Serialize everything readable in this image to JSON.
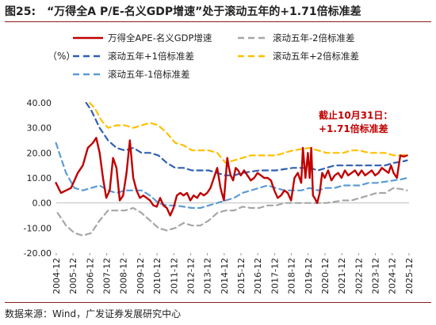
{
  "figure": {
    "number": "图25:",
    "title": "“万得全A P/E-名义GDP增速”处于滚动五年的+1.71倍标准差",
    "unit": "（%）",
    "source": "数据来源：Wind，广发证券发展研究中心",
    "annotation_line1": "截止10月31日：",
    "annotation_line2": "+1.71倍标准差"
  },
  "colors": {
    "main": "#c00000",
    "minus2": "#a6a6a6",
    "plus1": "#2f5fb3",
    "plus2": "#ffc000",
    "minus1": "#5b9bd5",
    "title_rule": "#8a1c1c"
  },
  "chart_data": {
    "type": "line",
    "y_ticks": [
      "40.00",
      "30.00",
      "20.00",
      "10.00",
      "0.00",
      "-10.00",
      "-20.00"
    ],
    "ylim": [
      -20,
      40
    ],
    "x_ticks": [
      "2004-12",
      "2005-12",
      "2006-12",
      "2007-12",
      "2008-12",
      "2009-12",
      "2010-12",
      "2011-12",
      "2012-12",
      "2013-12",
      "2014-12",
      "2015-12",
      "2016-12",
      "2017-12",
      "2018-12",
      "2019-12",
      "2020-12",
      "2021-12",
      "2022-12",
      "2023-12",
      "2024-12",
      "2025-12"
    ],
    "xlim": [
      2004.92,
      2025.92
    ],
    "legend_position": "top",
    "series": [
      {
        "name": "万得全APE-名义GDP增速",
        "style": "solid",
        "color_key": "main",
        "x": [
          2004.9,
          2005.2,
          2005.5,
          2005.8,
          2006.2,
          2006.5,
          2006.8,
          2007.1,
          2007.3,
          2007.5,
          2007.7,
          2007.9,
          2008.1,
          2008.3,
          2008.5,
          2008.7,
          2008.9,
          2009.1,
          2009.3,
          2009.5,
          2009.7,
          2009.9,
          2010.1,
          2010.3,
          2010.5,
          2010.7,
          2010.9,
          2011.1,
          2011.3,
          2011.5,
          2011.7,
          2011.9,
          2012.1,
          2012.3,
          2012.5,
          2012.7,
          2012.9,
          2013.1,
          2013.3,
          2013.5,
          2013.7,
          2013.9,
          2014.1,
          2014.3,
          2014.5,
          2014.7,
          2014.9,
          2015.1,
          2015.2,
          2015.3,
          2015.45,
          2015.6,
          2015.75,
          2015.9,
          2016.1,
          2016.3,
          2016.5,
          2016.7,
          2016.9,
          2017.1,
          2017.3,
          2017.5,
          2017.7,
          2017.9,
          2018.1,
          2018.3,
          2018.5,
          2018.7,
          2018.9,
          2019.1,
          2019.3,
          2019.5,
          2019.6,
          2019.75,
          2019.9,
          2020.0,
          2020.1,
          2020.2,
          2020.3,
          2020.45,
          2020.6,
          2020.75,
          2020.9,
          2021.1,
          2021.3,
          2021.5,
          2021.7,
          2021.9,
          2022.1,
          2022.3,
          2022.5,
          2022.7,
          2022.9,
          2023.1,
          2023.3,
          2023.5,
          2023.7,
          2023.9,
          2024.1,
          2024.3,
          2024.5,
          2024.7,
          2024.85,
          2025.0,
          2025.2,
          2025.4,
          2025.6,
          2025.8
        ],
        "y": [
          8,
          4,
          5,
          6,
          12,
          15,
          22,
          24,
          26,
          20,
          10,
          2,
          5,
          18,
          14,
          1,
          3,
          12,
          25,
          10,
          5,
          2,
          3,
          2,
          1,
          -1,
          -1.5,
          2,
          -1,
          -2,
          -5,
          -2,
          3,
          4,
          3,
          4,
          1,
          3,
          2,
          4,
          3,
          4,
          6,
          10,
          14,
          6,
          1,
          18,
          14,
          11,
          9,
          14,
          13,
          11,
          13,
          11,
          9,
          10,
          12,
          11,
          10,
          10,
          9,
          5,
          2,
          3,
          5,
          4,
          1,
          10,
          12,
          8,
          22,
          10,
          20,
          10,
          22,
          3,
          2,
          0,
          4,
          12,
          10,
          13,
          9,
          11,
          12,
          10,
          13,
          11,
          12,
          13,
          11,
          13,
          11,
          12,
          13,
          11,
          12,
          14,
          13,
          12,
          15,
          12,
          10,
          19,
          18.5,
          19
        ]
      },
      {
        "name": "滚动五年-2倍标准差",
        "style": "dashed",
        "color_key": "minus2",
        "x": [
          2005.0,
          2005.5,
          2006.0,
          2006.5,
          2007.0,
          2007.5,
          2008.0,
          2008.5,
          2009.0,
          2009.5,
          2010.0,
          2010.5,
          2011.0,
          2011.5,
          2012.0,
          2012.5,
          2013.0,
          2013.5,
          2014.0,
          2014.5,
          2015.0,
          2015.5,
          2016.0,
          2016.5,
          2017.0,
          2017.5,
          2018.0,
          2018.5,
          2019.0,
          2019.5,
          2020.0,
          2020.5,
          2021.0,
          2021.5,
          2022.0,
          2022.5,
          2023.0,
          2023.5,
          2024.0,
          2024.5,
          2025.0,
          2025.5,
          2025.8
        ],
        "y": [
          -4,
          -9,
          -12,
          -13,
          -12,
          -7,
          -3,
          -3,
          -3,
          -2,
          -4,
          -7,
          -10,
          -11,
          -10,
          -8,
          -9,
          -9,
          -7,
          -4,
          -3,
          -3,
          -1.5,
          -2,
          -2,
          -1,
          -1,
          0,
          0,
          0,
          0,
          0,
          0,
          0.5,
          1,
          1,
          2,
          3,
          4,
          4,
          6,
          5.5,
          5
        ]
      },
      {
        "name": "滚动五年+1倍标准差",
        "style": "dashed",
        "color_key": "plus1",
        "x": [
          2006.7,
          2007.0,
          2007.5,
          2008.0,
          2008.5,
          2009.0,
          2009.5,
          2010.0,
          2010.5,
          2011.0,
          2011.5,
          2012.0,
          2012.5,
          2013.0,
          2013.5,
          2014.0,
          2014.5,
          2015.0,
          2015.5,
          2016.0,
          2016.5,
          2017.0,
          2017.5,
          2018.0,
          2018.5,
          2019.0,
          2019.5,
          2020.0,
          2020.5,
          2021.0,
          2021.5,
          2022.0,
          2022.5,
          2023.0,
          2023.5,
          2024.0,
          2024.5,
          2025.0,
          2025.5,
          2025.8
        ],
        "y": [
          40,
          37,
          30,
          25,
          22,
          21,
          22,
          20,
          20,
          19,
          16,
          14,
          14,
          13,
          13,
          13,
          12,
          11,
          11,
          12,
          12.5,
          13,
          13,
          13,
          13.5,
          14,
          14,
          14,
          13,
          14,
          15,
          15,
          15,
          15,
          15,
          15,
          15,
          16,
          16.5,
          17
        ]
      },
      {
        "name": "滚动五年+2倍标准差",
        "style": "dashed",
        "color_key": "plus2",
        "x": [
          2006.9,
          2007.2,
          2007.6,
          2008.0,
          2008.5,
          2009.0,
          2009.5,
          2010.0,
          2010.5,
          2011.0,
          2011.5,
          2012.0,
          2012.5,
          2013.0,
          2013.5,
          2014.0,
          2014.5,
          2015.0,
          2015.5,
          2016.0,
          2016.5,
          2017.0,
          2017.5,
          2018.0,
          2018.5,
          2019.0,
          2019.5,
          2020.0,
          2020.5,
          2021.0,
          2021.5,
          2022.0,
          2022.5,
          2023.0,
          2023.5,
          2024.0,
          2024.5,
          2025.0,
          2025.5,
          2025.8
        ],
        "y": [
          40,
          38,
          33,
          30,
          31,
          31,
          30,
          31,
          32,
          31,
          28,
          24,
          23,
          21,
          21,
          21,
          20,
          16,
          17,
          18,
          19,
          19,
          19,
          19,
          20,
          21,
          21.5,
          22,
          21,
          20,
          20,
          20,
          21,
          21,
          20,
          20,
          20,
          19,
          19,
          19.5
        ]
      },
      {
        "name": "滚动五年-1倍标准差",
        "style": "dashed",
        "color_key": "minus1",
        "x": [
          2004.9,
          2005.2,
          2005.5,
          2006.0,
          2006.5,
          2007.0,
          2007.5,
          2008.0,
          2008.5,
          2009.0,
          2009.5,
          2010.0,
          2010.5,
          2011.0,
          2011.5,
          2012.0,
          2012.5,
          2013.0,
          2013.5,
          2014.0,
          2014.5,
          2015.0,
          2015.5,
          2016.0,
          2016.5,
          2017.0,
          2017.5,
          2018.0,
          2018.5,
          2019.0,
          2019.5,
          2020.0,
          2020.5,
          2021.0,
          2021.5,
          2022.0,
          2022.5,
          2023.0,
          2023.5,
          2024.0,
          2024.5,
          2025.0,
          2025.5,
          2025.8
        ],
        "y": [
          24,
          18,
          12,
          6,
          5,
          6,
          7,
          5,
          4,
          5,
          5,
          5,
          3,
          0,
          -1,
          -1,
          -1.5,
          -2,
          -2,
          -1,
          0,
          1,
          2,
          4,
          5,
          6,
          7,
          6,
          5,
          5,
          5,
          6,
          5,
          6,
          6,
          7,
          7,
          7,
          8,
          8,
          8.5,
          9,
          9.5,
          10
        ]
      }
    ]
  }
}
